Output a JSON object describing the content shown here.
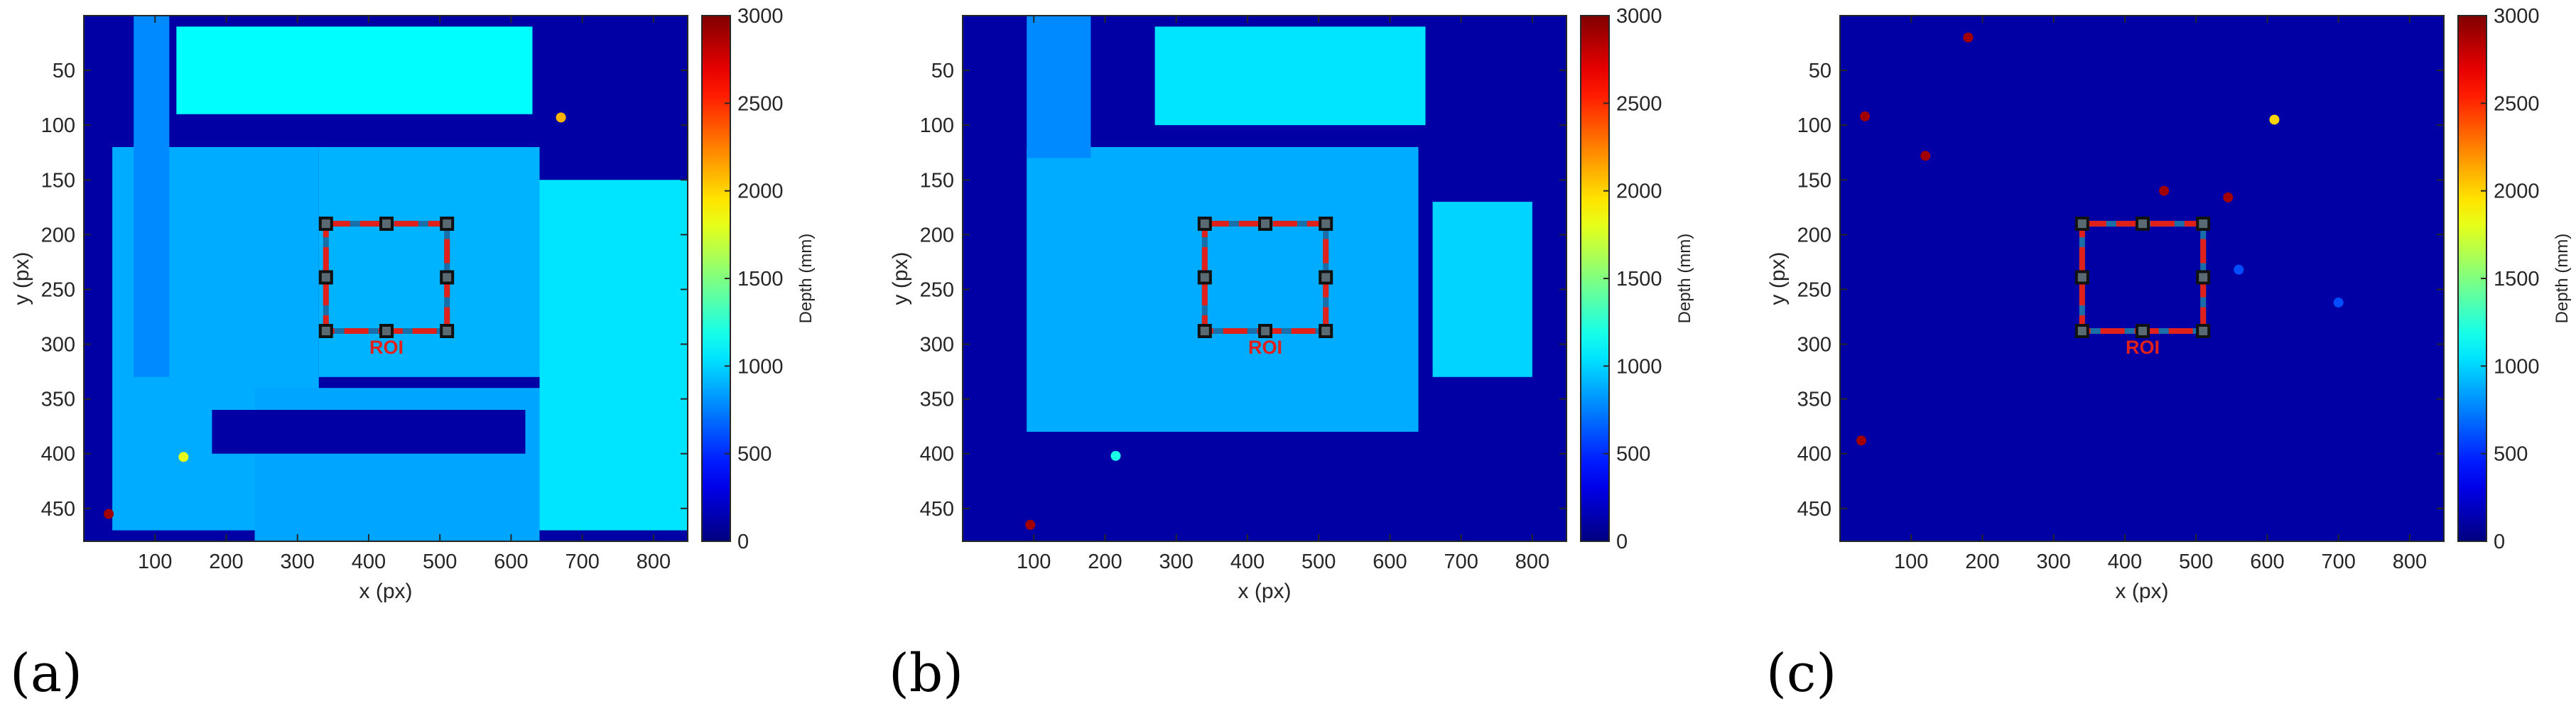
{
  "chart_data": [
    {
      "type": "heatmap",
      "panel_label": "(a)",
      "title": "",
      "xlabel": "x (px)",
      "ylabel": "y (px)",
      "xlim": [
        0,
        848
      ],
      "ylim": [
        480,
        0
      ],
      "xticks": [
        100,
        200,
        300,
        400,
        500,
        600,
        700,
        800
      ],
      "yticks": [
        50,
        100,
        150,
        200,
        250,
        300,
        350,
        400,
        450
      ],
      "colorbar": {
        "label": "Depth (mm)",
        "range": [
          0,
          3000
        ],
        "ticks": [
          0,
          500,
          1000,
          1500,
          2000,
          2500,
          3000
        ]
      },
      "roi": {
        "label": "ROI",
        "x": [
          340,
          510
        ],
        "y": [
          190,
          288
        ]
      },
      "regions": [
        {
          "x": [
            0,
            850
          ],
          "y": [
            0,
            480
          ],
          "depth": 110
        },
        {
          "x": [
            40,
            330
          ],
          "y": [
            120,
            470
          ],
          "depth": 880
        },
        {
          "x": [
            130,
            630
          ],
          "y": [
            10,
            90
          ],
          "depth": 1120
        },
        {
          "x": [
            330,
            640
          ],
          "y": [
            120,
            330
          ],
          "depth": 900
        },
        {
          "x": [
            640,
            850
          ],
          "y": [
            150,
            470
          ],
          "depth": 1050
        },
        {
          "x": [
            70,
            120
          ],
          "y": [
            0,
            330
          ],
          "depth": 780
        },
        {
          "x": [
            240,
            640
          ],
          "y": [
            340,
            480
          ],
          "depth": 860
        },
        {
          "x": [
            180,
            620
          ],
          "y": [
            360,
            400
          ],
          "depth": 110
        }
      ],
      "outliers": [
        {
          "x": 670,
          "y": 93,
          "depth": 2100
        },
        {
          "x": 35,
          "y": 455,
          "depth": 2900
        },
        {
          "x": 140,
          "y": 403,
          "depth": 1800
        }
      ]
    },
    {
      "type": "heatmap",
      "panel_label": "(b)",
      "title": "",
      "xlabel": "x (px)",
      "ylabel": "y (px)",
      "xlim": [
        0,
        848
      ],
      "ylim": [
        480,
        0
      ],
      "xticks": [
        100,
        200,
        300,
        400,
        500,
        600,
        700,
        800
      ],
      "yticks": [
        50,
        100,
        150,
        200,
        250,
        300,
        350,
        400,
        450
      ],
      "colorbar": {
        "label": "Depth (mm)",
        "range": [
          0,
          3000
        ],
        "ticks": [
          0,
          500,
          1000,
          1500,
          2000,
          2500,
          3000
        ]
      },
      "roi": {
        "label": "ROI",
        "x": [
          340,
          510
        ],
        "y": [
          190,
          288
        ]
      },
      "regions": [
        {
          "x": [
            0,
            850
          ],
          "y": [
            0,
            480
          ],
          "depth": 110
        },
        {
          "x": [
            90,
            640
          ],
          "y": [
            120,
            380
          ],
          "depth": 880
        },
        {
          "x": [
            270,
            650
          ],
          "y": [
            10,
            100
          ],
          "depth": 1050
        },
        {
          "x": [
            90,
            180
          ],
          "y": [
            0,
            130
          ],
          "depth": 780
        },
        {
          "x": [
            660,
            800
          ],
          "y": [
            170,
            330
          ],
          "depth": 1000
        }
      ],
      "outliers": [
        {
          "x": 95,
          "y": 465,
          "depth": 2900
        },
        {
          "x": 215,
          "y": 402,
          "depth": 1200
        }
      ]
    },
    {
      "type": "heatmap",
      "panel_label": "(c)",
      "title": "",
      "xlabel": "x (px)",
      "ylabel": "y (px)",
      "xlim": [
        0,
        848
      ],
      "ylim": [
        480,
        0
      ],
      "xticks": [
        100,
        200,
        300,
        400,
        500,
        600,
        700,
        800
      ],
      "yticks": [
        50,
        100,
        150,
        200,
        250,
        300,
        350,
        400,
        450
      ],
      "colorbar": {
        "label": "Depth (mm)",
        "range": [
          0,
          3000
        ],
        "ticks": [
          0,
          500,
          1000,
          1500,
          2000,
          2500,
          3000
        ]
      },
      "roi": {
        "label": "ROI",
        "x": [
          340,
          510
        ],
        "y": [
          190,
          288
        ]
      },
      "regions": [
        {
          "x": [
            0,
            850
          ],
          "y": [
            0,
            480
          ],
          "depth": 110
        }
      ],
      "outliers": [
        {
          "x": 610,
          "y": 95,
          "depth": 2000
        },
        {
          "x": 35,
          "y": 92,
          "depth": 2900
        },
        {
          "x": 120,
          "y": 128,
          "depth": 2900
        },
        {
          "x": 545,
          "y": 166,
          "depth": 2900
        },
        {
          "x": 455,
          "y": 160,
          "depth": 2900
        },
        {
          "x": 180,
          "y": 20,
          "depth": 2900
        },
        {
          "x": 560,
          "y": 232,
          "depth": 600
        },
        {
          "x": 700,
          "y": 262,
          "depth": 600
        },
        {
          "x": 30,
          "y": 388,
          "depth": 2900
        }
      ]
    }
  ]
}
